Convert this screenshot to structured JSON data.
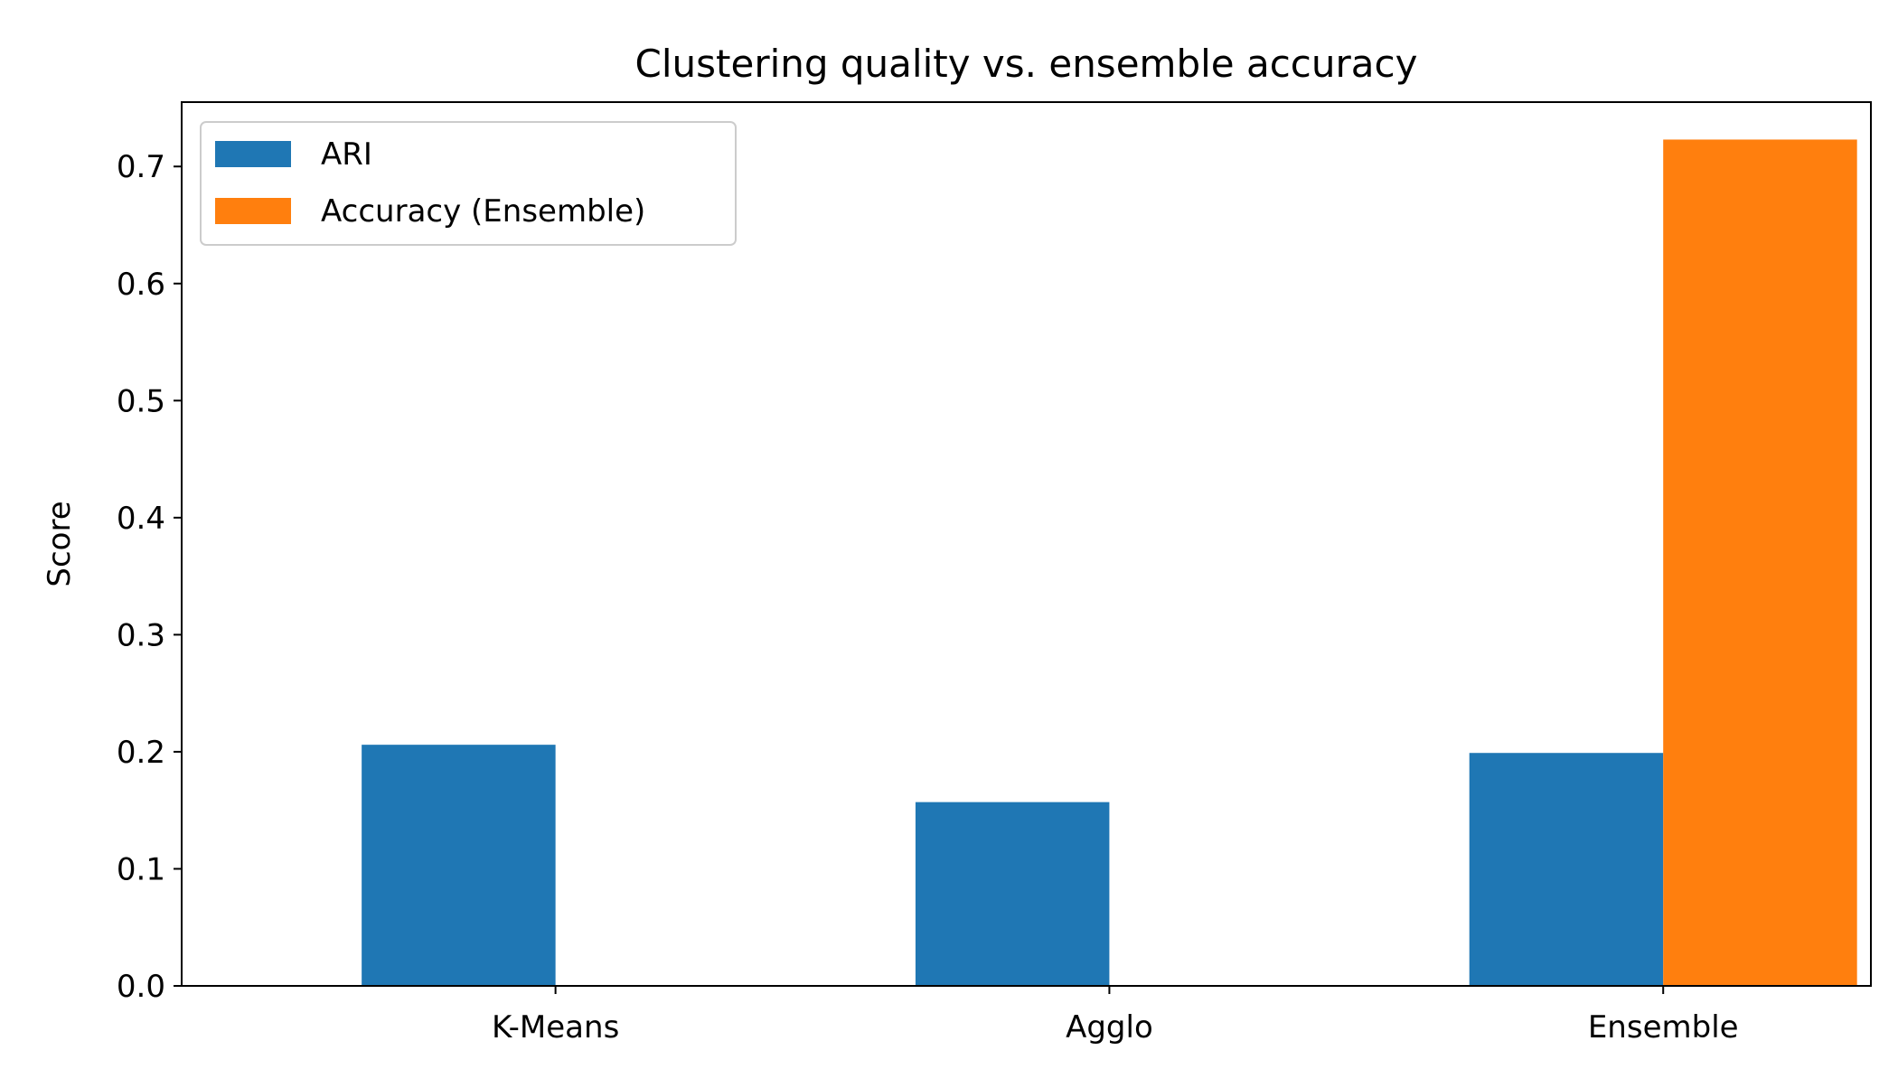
{
  "chart_data": {
    "type": "bar",
    "title": "Clustering quality vs. ensemble accuracy",
    "xlabel": "",
    "ylabel": "Score",
    "categories": [
      "K-Means",
      "Agglo",
      "Ensemble"
    ],
    "series": [
      {
        "name": "ARI",
        "color": "#1f77b4",
        "values": [
          0.206,
          0.157,
          0.199
        ]
      },
      {
        "name": "Accuracy (Ensemble)",
        "color": "#ff7f0e",
        "values": [
          0,
          0,
          0.723
        ]
      }
    ],
    "ylim": [
      0,
      0.755
    ],
    "yticks": [
      "0.0",
      "0.1",
      "0.2",
      "0.3",
      "0.4",
      "0.5",
      "0.6",
      "0.7"
    ],
    "grid": false,
    "legend_position": "top-left"
  }
}
